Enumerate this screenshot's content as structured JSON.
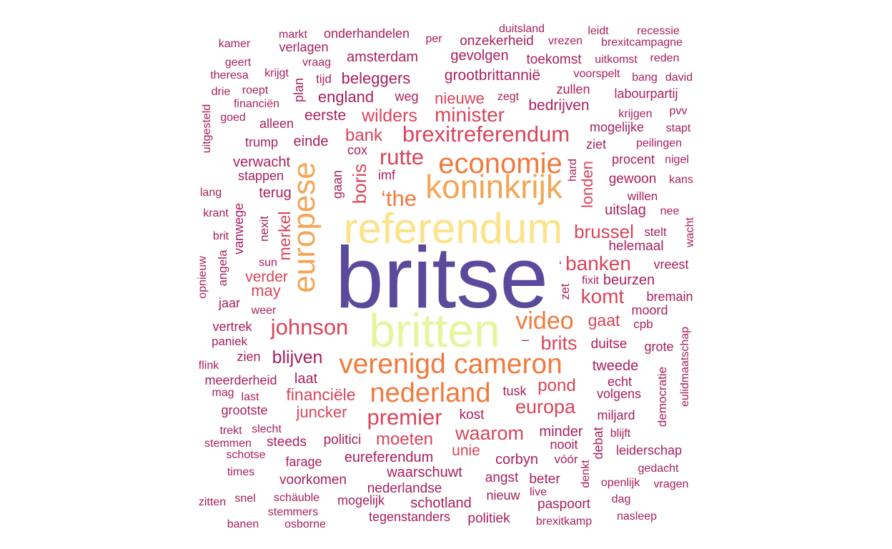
{
  "wordcloud": {
    "palette": {
      "c1": "#5b4a9c",
      "c2": "#fce38a",
      "c3": "#e6f59d",
      "c4": "#f07a3e",
      "c5": "#f3a657",
      "c6": "#d9455a",
      "c7": "#a8205e",
      "c8": "#7a0e3e"
    },
    "words": [
      {
        "text": "britse",
        "color": "c1"
      },
      {
        "text": "referendum",
        "color": "c2"
      },
      {
        "text": "britten",
        "color": "c3"
      },
      {
        "text": "europese",
        "color": "c5"
      },
      {
        "text": "koninkrijk",
        "color": "c5"
      },
      {
        "text": "economie",
        "color": "c4"
      },
      {
        "text": "verenigd",
        "color": "c4"
      },
      {
        "text": "cameron",
        "color": "c4"
      },
      {
        "text": "nederland",
        "color": "c4"
      },
      {
        "text": "video",
        "color": "c4"
      },
      {
        "text": "brexitreferendum",
        "color": "c6"
      },
      {
        "text": "rutte",
        "color": "c6"
      },
      {
        "text": "‘the",
        "color": "c4"
      },
      {
        "text": "premier",
        "color": "c6"
      },
      {
        "text": "johnson",
        "color": "c6"
      },
      {
        "text": "minister",
        "color": "c6"
      },
      {
        "text": "banken",
        "color": "c6"
      },
      {
        "text": "brussel",
        "color": "c6"
      },
      {
        "text": "komt",
        "color": "c6"
      },
      {
        "text": "europa",
        "color": "c6"
      },
      {
        "text": "waarom",
        "color": "c6"
      },
      {
        "text": "brits",
        "color": "c6"
      },
      {
        "text": "boris",
        "color": "c6"
      },
      {
        "text": "wilders",
        "color": "c6"
      },
      {
        "text": "bank",
        "color": "c6"
      },
      {
        "text": "merkel",
        "color": "c6"
      },
      {
        "text": "londen",
        "color": "c6"
      },
      {
        "text": "gaat",
        "color": "c6"
      },
      {
        "text": "moeten",
        "color": "c6"
      },
      {
        "text": "pond",
        "color": "c6"
      },
      {
        "text": "blijven",
        "color": "c7"
      },
      {
        "text": "financiële",
        "color": "c6"
      },
      {
        "text": "nieuwe",
        "color": "c6"
      },
      {
        "text": "may",
        "color": "c6"
      },
      {
        "text": "verder",
        "color": "c6"
      },
      {
        "text": "unie",
        "color": "c6"
      },
      {
        "text": "juncker",
        "color": "c6"
      },
      {
        "text": "grootbrittannië",
        "color": "c7"
      },
      {
        "text": "beleggers",
        "color": "c7"
      },
      {
        "text": "england",
        "color": "c7"
      },
      {
        "text": "eerste",
        "color": "c7"
      },
      {
        "text": "bedrijven",
        "color": "c7"
      },
      {
        "text": "amsterdam",
        "color": "c7"
      },
      {
        "text": "gevolgen",
        "color": "c7"
      },
      {
        "text": "toekomst",
        "color": "c7"
      },
      {
        "text": "onzekerheid",
        "color": "c7"
      },
      {
        "text": "onderhandelen",
        "color": "c7"
      },
      {
        "text": "verlagen",
        "color": "c7"
      },
      {
        "text": "einde",
        "color": "c7"
      },
      {
        "text": "verwacht",
        "color": "c7"
      },
      {
        "text": "stappen",
        "color": "c7"
      },
      {
        "text": "terug",
        "color": "c7"
      },
      {
        "text": "uitslag",
        "color": "c7"
      },
      {
        "text": "helemaal",
        "color": "c7"
      },
      {
        "text": "beurzen",
        "color": "c7"
      },
      {
        "text": "moord",
        "color": "c7"
      },
      {
        "text": "tweede",
        "color": "c7"
      },
      {
        "text": "echt",
        "color": "c7"
      },
      {
        "text": "volgens",
        "color": "c7"
      },
      {
        "text": "duitse",
        "color": "c7"
      },
      {
        "text": "eureferendum",
        "color": "c7"
      },
      {
        "text": "corbyn",
        "color": "c7"
      },
      {
        "text": "waarschuwt",
        "color": "c7"
      },
      {
        "text": "nederlandse",
        "color": "c7"
      },
      {
        "text": "schotland",
        "color": "c7"
      },
      {
        "text": "tegenstanders",
        "color": "c7"
      },
      {
        "text": "politiek",
        "color": "c7"
      },
      {
        "text": "mogelijk",
        "color": "c7"
      },
      {
        "text": "voorkomen",
        "color": "c7"
      },
      {
        "text": "politici",
        "color": "c7"
      },
      {
        "text": "minder",
        "color": "c7"
      },
      {
        "text": "paspoort",
        "color": "c7"
      },
      {
        "text": "angst",
        "color": "c7"
      },
      {
        "text": "nieuw",
        "color": "c7"
      },
      {
        "text": "beter",
        "color": "c7"
      },
      {
        "text": "kost",
        "color": "c7"
      },
      {
        "text": "laat",
        "color": "c7"
      },
      {
        "text": "zien",
        "color": "c7"
      },
      {
        "text": "meerderheid",
        "color": "c7"
      },
      {
        "text": "grootste",
        "color": "c7"
      },
      {
        "text": "steeds",
        "color": "c7"
      },
      {
        "text": "farage",
        "color": "c7"
      },
      {
        "text": "trump",
        "color": "c7"
      },
      {
        "text": "alleen",
        "color": "c7"
      },
      {
        "text": "weg",
        "color": "c7"
      },
      {
        "text": "zullen",
        "color": "c7"
      },
      {
        "text": "mogelijke",
        "color": "c7"
      },
      {
        "text": "procent",
        "color": "c7"
      },
      {
        "text": "gewoon",
        "color": "c7"
      },
      {
        "text": "cox",
        "color": "c7"
      },
      {
        "text": "imf",
        "color": "c7"
      },
      {
        "text": "jaar",
        "color": "c7"
      },
      {
        "text": "vertrek",
        "color": "c7"
      },
      {
        "text": "paniek",
        "color": "c7"
      },
      {
        "text": "vanwege",
        "color": "c7"
      },
      {
        "text": "angela",
        "color": "c7"
      },
      {
        "text": "nexit",
        "color": "c7"
      },
      {
        "text": "gaan",
        "color": "c7"
      },
      {
        "text": "plan",
        "color": "c7"
      },
      {
        "text": "tijd",
        "color": "c7"
      },
      {
        "text": "vraag",
        "color": "c7"
      },
      {
        "text": "krijgt",
        "color": "c7"
      },
      {
        "text": "roept",
        "color": "c7"
      },
      {
        "text": "financiën",
        "color": "c7"
      },
      {
        "text": "goed",
        "color": "c7"
      },
      {
        "text": "theresa",
        "color": "c7"
      },
      {
        "text": "drie",
        "color": "c7"
      },
      {
        "text": "geert",
        "color": "c7"
      },
      {
        "text": "kamer",
        "color": "c7"
      },
      {
        "text": "markt",
        "color": "c7"
      },
      {
        "text": "per",
        "color": "c7"
      },
      {
        "text": "duitsland",
        "color": "c7"
      },
      {
        "text": "vrezen",
        "color": "c7"
      },
      {
        "text": "leidt",
        "color": "c7"
      },
      {
        "text": "recessie",
        "color": "c7"
      },
      {
        "text": "brexitcampagne",
        "color": "c7"
      },
      {
        "text": "uitkomst",
        "color": "c7"
      },
      {
        "text": "reden",
        "color": "c7"
      },
      {
        "text": "voorspelt",
        "color": "c7"
      },
      {
        "text": "bang",
        "color": "c7"
      },
      {
        "text": "david",
        "color": "c7"
      },
      {
        "text": "zegt",
        "color": "c7"
      },
      {
        "text": "labourpartij",
        "color": "c7"
      },
      {
        "text": "krijgen",
        "color": "c7"
      },
      {
        "text": "pvv",
        "color": "c7"
      },
      {
        "text": "stapt",
        "color": "c7"
      },
      {
        "text": "peilingen",
        "color": "c7"
      },
      {
        "text": "ziet",
        "color": "c7"
      },
      {
        "text": "nigel",
        "color": "c7"
      },
      {
        "text": "hard",
        "color": "c7"
      },
      {
        "text": "kans",
        "color": "c7"
      },
      {
        "text": "willen",
        "color": "c7"
      },
      {
        "text": "nee",
        "color": "c7"
      },
      {
        "text": "stelt",
        "color": "c7"
      },
      {
        "text": "wacht",
        "color": "c7"
      },
      {
        "text": "vreest",
        "color": "c7"
      },
      {
        "text": "fixit",
        "color": "c7"
      },
      {
        "text": "zet",
        "color": "c7"
      },
      {
        "text": "bremain",
        "color": "c7"
      },
      {
        "text": "cpb",
        "color": "c7"
      },
      {
        "text": "grote",
        "color": "c7"
      },
      {
        "text": "democratie",
        "color": "c7"
      },
      {
        "text": "eulidmaatschap",
        "color": "c7"
      },
      {
        "text": "miljard",
        "color": "c7"
      },
      {
        "text": "blijft",
        "color": "c7"
      },
      {
        "text": "debat",
        "color": "c7"
      },
      {
        "text": "leiderschap",
        "color": "c7"
      },
      {
        "text": "nooit",
        "color": "c7"
      },
      {
        "text": "vóór",
        "color": "c7"
      },
      {
        "text": "denkt",
        "color": "c7"
      },
      {
        "text": "gedacht",
        "color": "c7"
      },
      {
        "text": "openlijk",
        "color": "c7"
      },
      {
        "text": "vragen",
        "color": "c7"
      },
      {
        "text": "dag",
        "color": "c7"
      },
      {
        "text": "nasleep",
        "color": "c7"
      },
      {
        "text": "live",
        "color": "c7"
      },
      {
        "text": "brexitkamp",
        "color": "c7"
      },
      {
        "text": "tusk",
        "color": "c7"
      },
      {
        "text": "‘",
        "color": "c7"
      },
      {
        "text": "–",
        "color": "c7"
      },
      {
        "text": "uitgesteld",
        "color": "c7"
      },
      {
        "text": "lang",
        "color": "c7"
      },
      {
        "text": "krant",
        "color": "c7"
      },
      {
        "text": "brit",
        "color": "c7"
      },
      {
        "text": "opnieuw",
        "color": "c7"
      },
      {
        "text": "sun",
        "color": "c7"
      },
      {
        "text": "weer",
        "color": "c7"
      },
      {
        "text": "flink",
        "color": "c7"
      },
      {
        "text": "mag",
        "color": "c7"
      },
      {
        "text": "last",
        "color": "c7"
      },
      {
        "text": "trekt",
        "color": "c7"
      },
      {
        "text": "slecht",
        "color": "c7"
      },
      {
        "text": "stemmen",
        "color": "c7"
      },
      {
        "text": "schotse",
        "color": "c7"
      },
      {
        "text": "times",
        "color": "c7"
      },
      {
        "text": "zitten",
        "color": "c7"
      },
      {
        "text": "snel",
        "color": "c7"
      },
      {
        "text": "schäuble",
        "color": "c7"
      },
      {
        "text": "stemmers",
        "color": "c7"
      },
      {
        "text": "banen",
        "color": "c7"
      },
      {
        "text": "osborne",
        "color": "c7"
      }
    ]
  }
}
